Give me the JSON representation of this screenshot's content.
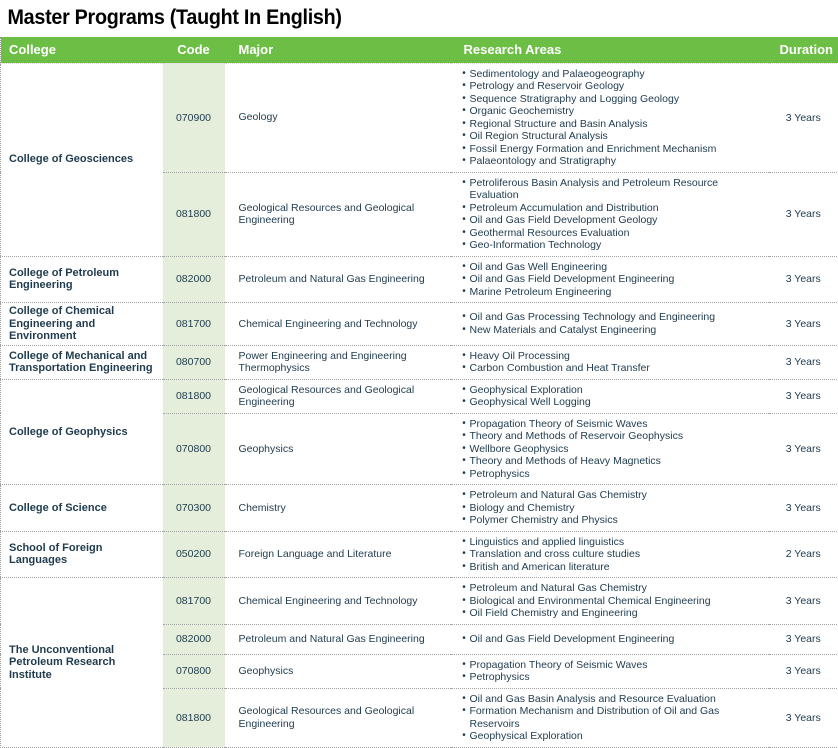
{
  "page_title": "Master Programs (Taught In English)",
  "colors": {
    "header_green": "#6cbe45",
    "code_column_bg": "#e4eeda",
    "text_navy": "#1f3b4d"
  },
  "table": {
    "headers": [
      "College",
      "Code",
      "Major",
      "Research Areas",
      "Duration"
    ],
    "groups": [
      {
        "college": "College of Geosciences",
        "programs": [
          {
            "code": "070900",
            "major": "Geology",
            "research_areas": [
              "Sedimentology and Palaeogeography",
              "Petrology and Reservoir Geology",
              "Sequence Stratigraphy and Logging Geology",
              "Organic Geochemistry",
              "Regional Structure and Basin Analysis",
              "Oil Region Structural Analysis",
              "Fossil Energy Formation and Enrichment Mechanism",
              "Palaeontology and Stratigraphy"
            ],
            "duration": "3 Years"
          },
          {
            "code": "081800",
            "major": "Geological Resources and Geological Engineering",
            "research_areas": [
              "Petroliferous Basin Analysis and Petroleum Resource Evaluation",
              "Petroleum Accumulation and Distribution",
              "Oil and Gas Field Development Geology",
              "Geothermal Resources Evaluation",
              "Geo-Information Technology"
            ],
            "duration": "3 Years"
          }
        ]
      },
      {
        "college": "College of Petroleum Engineering",
        "programs": [
          {
            "code": "082000",
            "major": "Petroleum and Natural Gas Engineering",
            "research_areas": [
              "Oil and Gas Well Engineering",
              "Oil and Gas Field Development Engineering",
              "Marine Petroleum Engineering"
            ],
            "duration": "3 Years"
          }
        ]
      },
      {
        "college": "College of Chemical Engineering and Environment",
        "programs": [
          {
            "code": "081700",
            "major": "Chemical Engineering and Technology",
            "research_areas": [
              "Oil and Gas Processing Technology and Engineering",
              "New Materials and Catalyst Engineering"
            ],
            "duration": "3 Years"
          }
        ]
      },
      {
        "college": "College of Mechanical and Transportation Engineering",
        "programs": [
          {
            "code": "080700",
            "major": "Power Engineering and Engineering Thermophysics",
            "research_areas": [
              "Heavy Oil Processing",
              "Carbon Combustion and Heat Transfer"
            ],
            "duration": "3 Years"
          }
        ]
      },
      {
        "college": "College of Geophysics",
        "programs": [
          {
            "code": "081800",
            "major": "Geological Resources and Geological Engineering",
            "research_areas": [
              "Geophysical Exploration",
              "Geophysical Well Logging"
            ],
            "duration": "3 Years"
          },
          {
            "code": "070800",
            "major": "Geophysics",
            "research_areas": [
              "Propagation Theory of Seismic Waves",
              "Theory and Methods of Reservoir Geophysics",
              "Wellbore Geophysics",
              "Theory and Methods of Heavy Magnetics",
              "Petrophysics"
            ],
            "duration": "3 Years"
          }
        ]
      },
      {
        "college": "College of Science",
        "programs": [
          {
            "code": "070300",
            "major": "Chemistry",
            "research_areas": [
              "Petroleum and Natural Gas Chemistry",
              "Biology and Chemistry",
              "Polymer Chemistry and Physics"
            ],
            "duration": "3 Years"
          }
        ]
      },
      {
        "college": "School of Foreign Languages",
        "programs": [
          {
            "code": "050200",
            "major": "Foreign Language and Literature",
            "research_areas": [
              "Linguistics and applied linguistics",
              "Translation and cross culture studies",
              "British and American literature"
            ],
            "duration": "2 Years"
          }
        ]
      },
      {
        "college": "The Unconventional Petroleum Research Institute",
        "programs": [
          {
            "code": "081700",
            "major": "Chemical Engineering and Technology",
            "research_areas": [
              "Petroleum and Natural Gas Chemistry",
              "Biological and Environmental Chemical Engineering",
              "Oil Field Chemistry and Engineering"
            ],
            "duration": "3 Years"
          },
          {
            "code": "082000",
            "major": "Petroleum and Natural Gas Engineering",
            "research_areas": [
              "Oil and Gas Field Development Engineering"
            ],
            "duration": "3 Years"
          },
          {
            "code": "070800",
            "major": "Geophysics",
            "research_areas": [
              "Propagation Theory of Seismic Waves",
              "Petrophysics"
            ],
            "duration": "3 Years"
          },
          {
            "code": "081800",
            "major": "Geological Resources and Geological Engineering",
            "research_areas": [
              "Oil and Gas Basin Analysis and Resource Evaluation",
              "Formation Mechanism and Distribution of Oil and Gas Reservoirs",
              "Geophysical Exploration"
            ],
            "duration": "3 Years"
          }
        ]
      }
    ]
  }
}
